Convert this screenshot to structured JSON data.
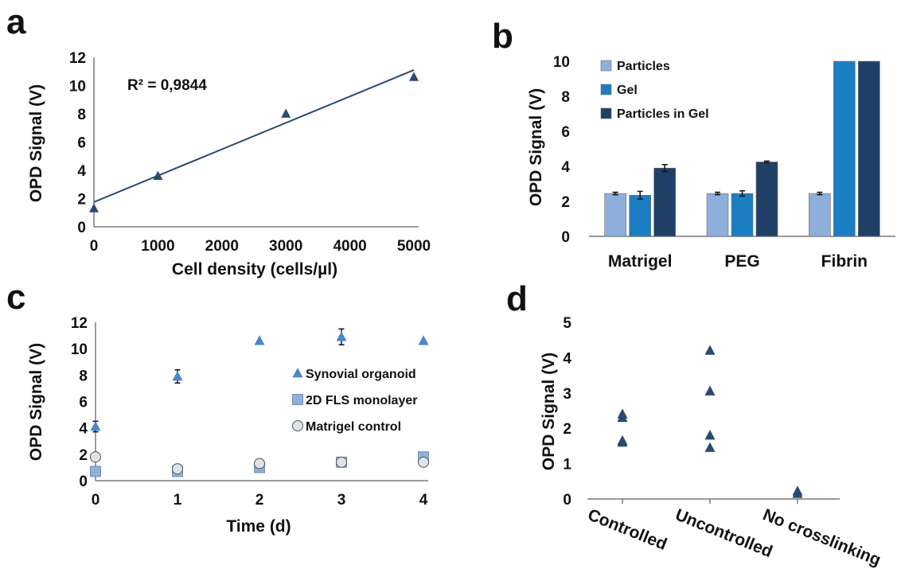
{
  "colors": {
    "marker_dark": "#2b4a70",
    "marker_mid": "#4a86c8",
    "line": "#2b4a70",
    "bar_light": "#8eaedb",
    "bar_mid": "#1b7ec3",
    "bar_dark": "#1f3f66",
    "square": "#8fb0d8",
    "circle": "#dde3ea",
    "axis": "#7a7a7a"
  },
  "chart_data": [
    {
      "panel": "a",
      "type": "scatter",
      "xlabel": "Cell density (cells/µl)",
      "ylabel": "OPD Signal (V)",
      "xlim": [
        0,
        5000
      ],
      "ylim": [
        0,
        12
      ],
      "xticks": [
        "0",
        "1000",
        "2000",
        "3000",
        "4000",
        "5000"
      ],
      "yticks": [
        "0",
        "2",
        "4",
        "6",
        "8",
        "10",
        "12"
      ],
      "annotation": "R² = 0,9844",
      "series": [
        {
          "marker": "triangle",
          "x": [
            0,
            1000,
            3000,
            5000
          ],
          "y": [
            1.3,
            3.6,
            8.0,
            10.6
          ]
        }
      ],
      "trendline": {
        "x": [
          0,
          5000
        ],
        "y": [
          1.75,
          11.1
        ]
      }
    },
    {
      "panel": "b",
      "type": "bar",
      "ylabel": "OPD Signal (V)",
      "ylim": [
        0,
        10
      ],
      "yticks": [
        "0",
        "2",
        "4",
        "6",
        "8",
        "10"
      ],
      "categories": [
        "Matrigel",
        "PEG",
        "Fibrin"
      ],
      "legend_position": "top-left",
      "series": [
        {
          "name": "Particles",
          "values": [
            2.45,
            2.45,
            2.45
          ],
          "errors": [
            0.07,
            0.07,
            0.07
          ]
        },
        {
          "name": "Gel",
          "values": [
            2.35,
            2.45,
            10.0
          ],
          "errors": [
            0.22,
            0.15,
            0
          ]
        },
        {
          "name": "Particles in Gel",
          "values": [
            3.9,
            4.25,
            10.0
          ],
          "errors": [
            0.2,
            0.05,
            0
          ]
        }
      ]
    },
    {
      "panel": "c",
      "type": "scatter",
      "xlabel": "Time (d)",
      "ylabel": "OPD Signal (V)",
      "xlim": [
        0,
        4
      ],
      "ylim": [
        0,
        12
      ],
      "xticks": [
        "0",
        "1",
        "2",
        "3",
        "4"
      ],
      "yticks": [
        "0",
        "2",
        "4",
        "6",
        "8",
        "10",
        "12"
      ],
      "legend_position": "right",
      "series": [
        {
          "name": "Synovial organoid",
          "marker": "triangle",
          "x": [
            0,
            1,
            2,
            3,
            4
          ],
          "y": [
            4.1,
            7.9,
            10.6,
            10.9,
            10.6
          ],
          "errors": [
            0.4,
            0.5,
            0,
            0.6,
            0
          ]
        },
        {
          "name": "2D FLS monolayer",
          "marker": "square",
          "x": [
            0,
            1,
            2,
            3,
            4
          ],
          "y": [
            0.7,
            0.7,
            1.0,
            1.4,
            1.8
          ],
          "errors": [
            0,
            0,
            0,
            0,
            0
          ]
        },
        {
          "name": "Matrigel control",
          "marker": "circle",
          "x": [
            0,
            1,
            2,
            3,
            4
          ],
          "y": [
            1.8,
            0.9,
            1.3,
            1.4,
            1.4
          ],
          "errors": [
            0,
            0,
            0,
            0,
            0
          ]
        }
      ]
    },
    {
      "panel": "d",
      "type": "scatter",
      "ylabel": "OPD Signal (V)",
      "ylim": [
        0,
        5
      ],
      "yticks": [
        "0",
        "1",
        "2",
        "3",
        "4",
        "5"
      ],
      "categories": [
        "Controlled",
        "Uncontrolled",
        "No crosslinking"
      ],
      "series": [
        {
          "marker": "triangle",
          "x": [
            "Controlled",
            "Controlled",
            "Controlled",
            "Controlled",
            "Uncontrolled",
            "Uncontrolled",
            "Uncontrolled",
            "Uncontrolled",
            "No crosslinking",
            "No crosslinking"
          ],
          "y": [
            2.4,
            2.3,
            1.65,
            1.6,
            4.2,
            3.05,
            1.8,
            1.45,
            0.22,
            0.15
          ]
        }
      ]
    }
  ]
}
